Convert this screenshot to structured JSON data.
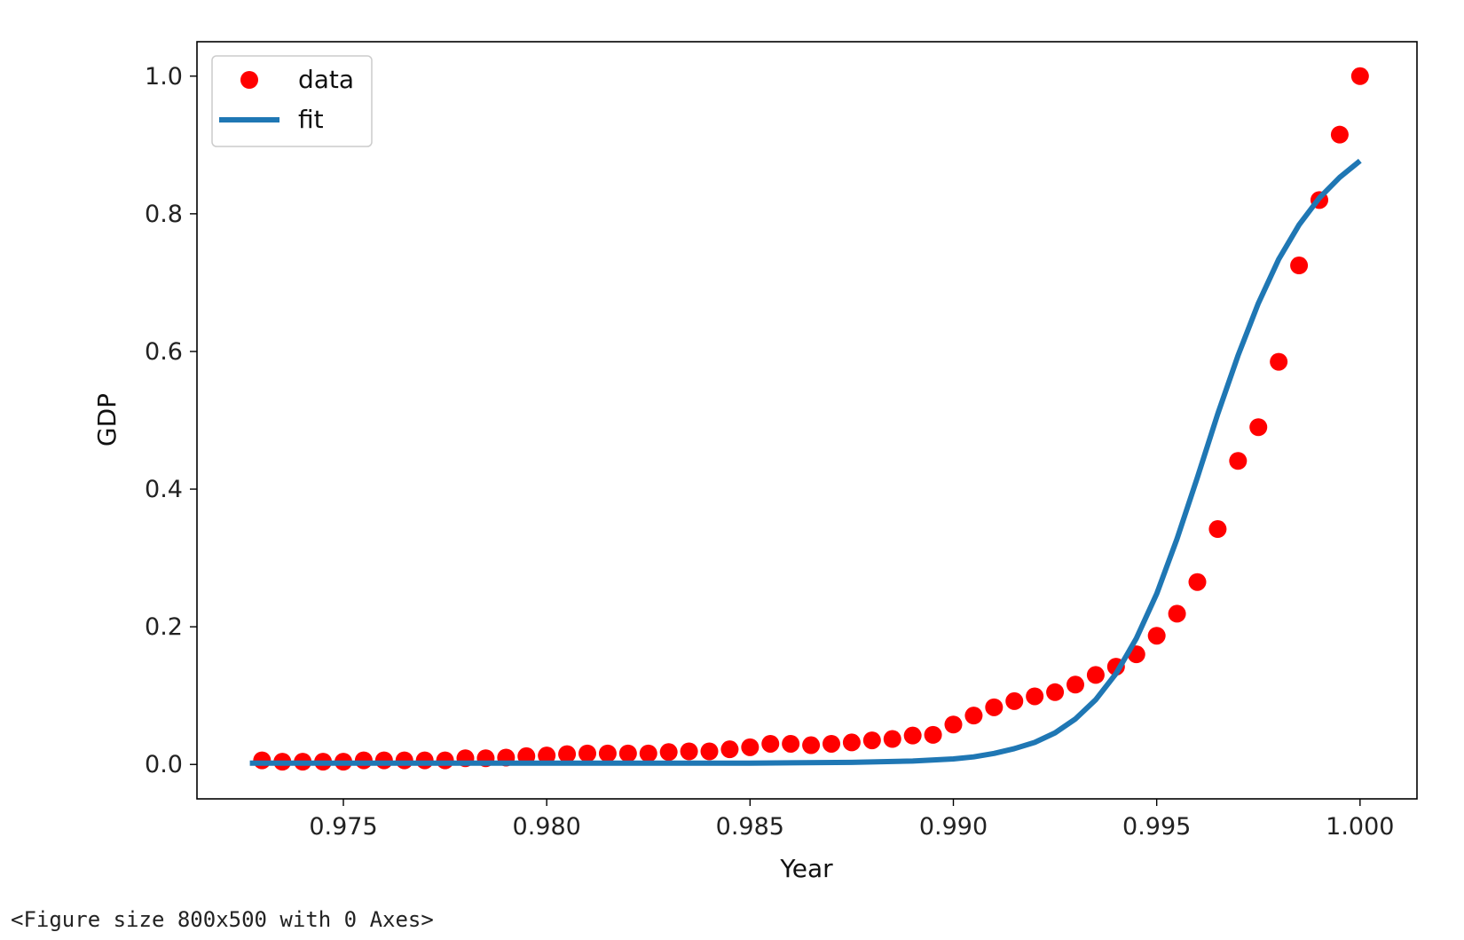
{
  "chart_data": {
    "type": "scatter",
    "title": "",
    "xlabel": "Year",
    "ylabel": "GDP",
    "xlim": [
      0.9714,
      1.0014
    ],
    "ylim": [
      -0.05,
      1.05
    ],
    "xticks": [
      0.975,
      0.98,
      0.985,
      0.99,
      0.995,
      1.0
    ],
    "xtick_labels": [
      "0.975",
      "0.980",
      "0.985",
      "0.990",
      "0.995",
      "1.000"
    ],
    "yticks": [
      0.0,
      0.2,
      0.4,
      0.6,
      0.8,
      1.0
    ],
    "ytick_labels": [
      "0.0",
      "0.2",
      "0.4",
      "0.6",
      "0.8",
      "1.0"
    ],
    "grid": false,
    "legend_position": "upper-left",
    "series": [
      {
        "name": "data",
        "kind": "scatter",
        "color": "#ff0000",
        "x": [
          0.973,
          0.9735,
          0.974,
          0.9745,
          0.975,
          0.9755,
          0.976,
          0.9765,
          0.977,
          0.9775,
          0.978,
          0.9785,
          0.979,
          0.9795,
          0.98,
          0.9805,
          0.981,
          0.9815,
          0.982,
          0.9825,
          0.983,
          0.9835,
          0.984,
          0.9845,
          0.985,
          0.9855,
          0.986,
          0.9865,
          0.987,
          0.9875,
          0.988,
          0.9885,
          0.989,
          0.9895,
          0.99,
          0.9905,
          0.991,
          0.9915,
          0.992,
          0.9925,
          0.993,
          0.9935,
          0.994,
          0.9945,
          0.995,
          0.9955,
          0.996,
          0.9965,
          0.997,
          0.9975,
          0.998,
          0.9985,
          0.999,
          0.9995,
          1.0
        ],
        "y": [
          0.006,
          0.004,
          0.004,
          0.004,
          0.004,
          0.006,
          0.006,
          0.006,
          0.006,
          0.006,
          0.009,
          0.009,
          0.01,
          0.012,
          0.013,
          0.015,
          0.016,
          0.016,
          0.016,
          0.016,
          0.018,
          0.019,
          0.019,
          0.022,
          0.025,
          0.03,
          0.03,
          0.028,
          0.03,
          0.032,
          0.035,
          0.037,
          0.042,
          0.043,
          0.058,
          0.071,
          0.083,
          0.092,
          0.099,
          0.105,
          0.116,
          0.13,
          0.142,
          0.16,
          0.187,
          0.219,
          0.265,
          0.342,
          0.441,
          0.49,
          0.585,
          0.725,
          0.82,
          0.915,
          1.0
        ]
      },
      {
        "name": "fit",
        "kind": "line",
        "color": "#1f77b4",
        "x": [
          0.9727,
          0.98,
          0.985,
          0.9875,
          0.989,
          0.99,
          0.9905,
          0.991,
          0.9915,
          0.992,
          0.9925,
          0.993,
          0.9935,
          0.994,
          0.9945,
          0.995,
          0.9955,
          0.996,
          0.9965,
          0.997,
          0.9975,
          0.998,
          0.9985,
          0.999,
          0.9995,
          1.0
        ],
        "y": [
          0.002,
          0.002,
          0.002,
          0.003,
          0.005,
          0.008,
          0.011,
          0.016,
          0.023,
          0.032,
          0.046,
          0.066,
          0.094,
          0.132,
          0.183,
          0.248,
          0.328,
          0.417,
          0.509,
          0.594,
          0.67,
          0.734,
          0.784,
          0.823,
          0.853,
          0.877
        ]
      }
    ]
  },
  "console": {
    "text": "<Figure size 800x500 with 0 Axes>"
  }
}
